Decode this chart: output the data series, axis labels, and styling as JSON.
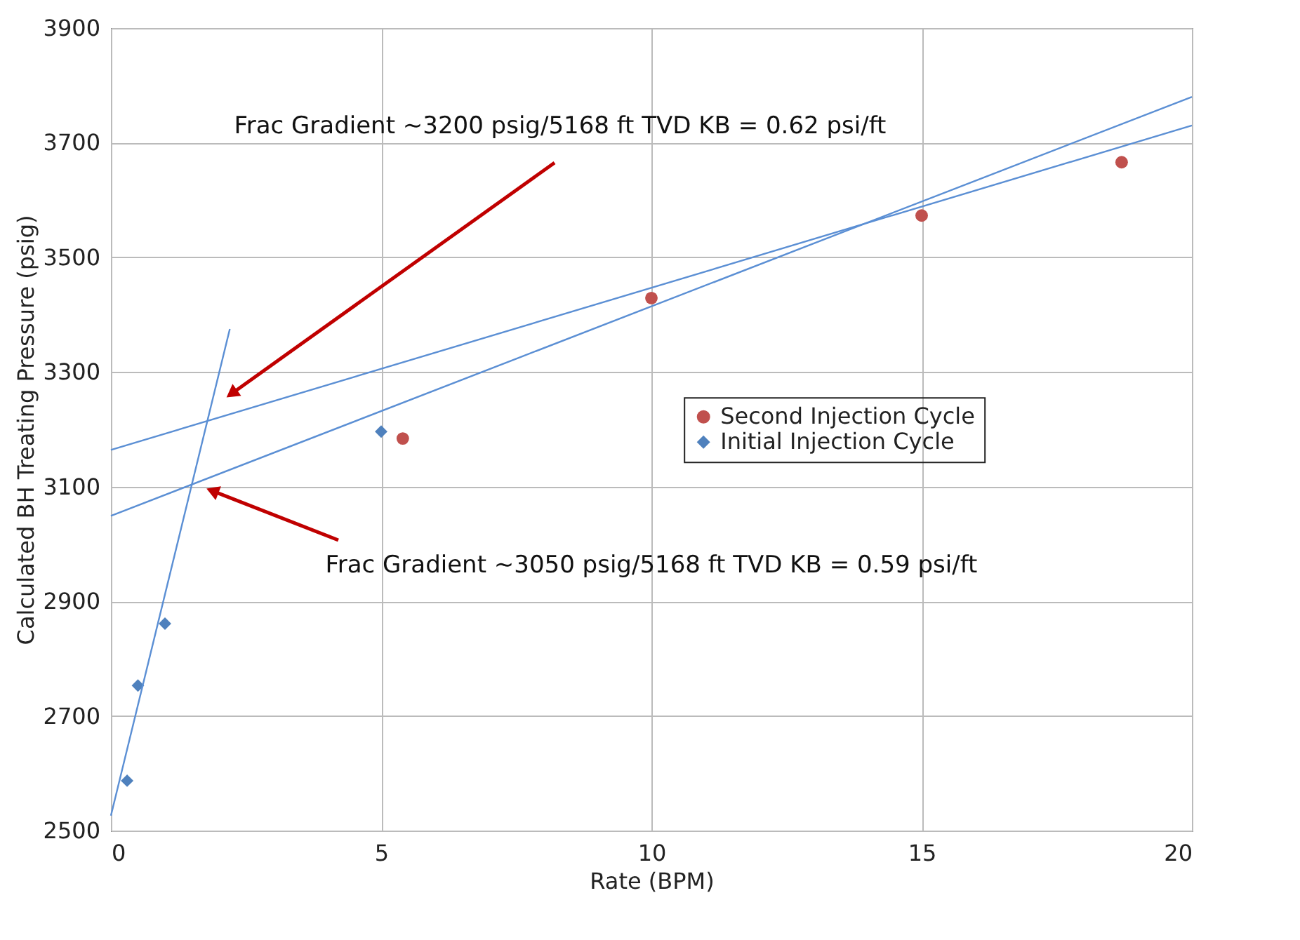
{
  "chart_data": {
    "type": "scatter",
    "xlabel": "Rate (BPM)",
    "ylabel": "Calculated BH Treating Pressure (psig)",
    "xlim": [
      0,
      20
    ],
    "ylim": [
      2500,
      3900
    ],
    "xticks": [
      0,
      5,
      10,
      15,
      20
    ],
    "yticks": [
      2500,
      2700,
      2900,
      3100,
      3300,
      3500,
      3700,
      3900
    ],
    "grid": true,
    "legend": "right",
    "series": [
      {
        "name": "Second Injection Cycle",
        "color": "#c0504d",
        "marker": "circle",
        "x": [
          5.4,
          10,
          15,
          18.7
        ],
        "values": [
          3184,
          3429,
          3573,
          3666
        ]
      },
      {
        "name": "Initial Injection Cycle",
        "color": "#4f81bd",
        "marker": "diamond",
        "x": [
          0.3,
          0.5,
          1.0,
          5.0
        ],
        "values": [
          2587,
          2753,
          2861,
          3196
        ]
      },
      {
        "type": "line",
        "color": "#5b8fd4",
        "x": [
          0,
          2.2
        ],
        "values": [
          2526,
          3375
        ]
      },
      {
        "type": "line",
        "color": "#5b8fd4",
        "x": [
          0,
          20
        ],
        "values": [
          3164,
          3730
        ]
      },
      {
        "type": "line",
        "color": "#5b8fd4",
        "x": [
          0,
          20
        ],
        "values": [
          3049,
          3780
        ]
      }
    ],
    "annotations": [
      "Frac Gradient ~3200 psig/5168 ft TVD KB = 0.62 psi/ft",
      "Frac Gradient ~3050 psig/5168 ft TVD KB = 0.59 psi/ft"
    ]
  }
}
